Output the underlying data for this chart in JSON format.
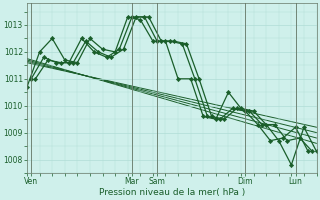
{
  "bg_color": "#cff0eb",
  "grid_color": "#b0ddd6",
  "line_color": "#1a5e2a",
  "marker_color": "#1a5e2a",
  "xlabel": "Pression niveau de la mer( hPa )",
  "ylim": [
    1007.5,
    1013.8
  ],
  "yticks": [
    1008,
    1009,
    1010,
    1011,
    1012,
    1013
  ],
  "xlim": [
    0,
    138
  ],
  "xtick_positions": [
    2,
    50,
    62,
    104,
    128
  ],
  "xtick_labels": [
    "Ven",
    "Mar",
    "Sam",
    "Dim",
    "Lun"
  ],
  "vline_positions": [
    2,
    50,
    62,
    104,
    128
  ],
  "series1_x": [
    0,
    6,
    12,
    18,
    24,
    30,
    36,
    42,
    48,
    54,
    60,
    66,
    72,
    78,
    84,
    90,
    96,
    102,
    108,
    114,
    120,
    126,
    132,
    138
  ],
  "series1_y": [
    1010.7,
    1012.0,
    1012.5,
    1011.7,
    1011.6,
    1012.5,
    1012.1,
    1012.0,
    1013.3,
    1013.2,
    1012.4,
    1012.4,
    1011.0,
    1011.0,
    1009.6,
    1009.5,
    1010.5,
    1009.9,
    1009.8,
    1009.3,
    1008.7,
    1007.8,
    1009.2,
    1008.3
  ],
  "series2_x": [
    2,
    8,
    14,
    20,
    26,
    32,
    38,
    44,
    50,
    56,
    62,
    68,
    74,
    80,
    86,
    92,
    98,
    104,
    110,
    116,
    122,
    128,
    134
  ],
  "series2_y": [
    1011.0,
    1011.8,
    1011.6,
    1011.6,
    1012.5,
    1012.0,
    1011.8,
    1012.1,
    1013.3,
    1013.3,
    1012.4,
    1012.4,
    1012.3,
    1011.0,
    1009.6,
    1009.5,
    1009.9,
    1009.8,
    1009.3,
    1008.7,
    1008.8,
    1009.2,
    1008.3
  ],
  "series3_x": [
    4,
    10,
    16,
    22,
    28,
    34,
    40,
    46,
    52,
    58,
    64,
    70,
    76,
    82,
    88,
    94,
    100,
    106,
    112,
    118,
    124,
    130,
    136
  ],
  "series3_y": [
    1011.0,
    1011.7,
    1011.6,
    1011.6,
    1012.4,
    1012.0,
    1011.8,
    1012.1,
    1013.3,
    1013.3,
    1012.4,
    1012.4,
    1012.3,
    1011.0,
    1009.6,
    1009.5,
    1009.9,
    1009.8,
    1009.3,
    1009.3,
    1008.7,
    1008.8,
    1008.3
  ],
  "trend_lines": [
    {
      "x0": 0,
      "y0": 1011.6,
      "x1": 138,
      "y1": 1009.2
    },
    {
      "x0": 0,
      "y0": 1011.65,
      "x1": 138,
      "y1": 1009.0
    },
    {
      "x0": 0,
      "y0": 1011.7,
      "x1": 138,
      "y1": 1008.8
    },
    {
      "x0": 0,
      "y0": 1011.75,
      "x1": 138,
      "y1": 1008.6
    }
  ]
}
